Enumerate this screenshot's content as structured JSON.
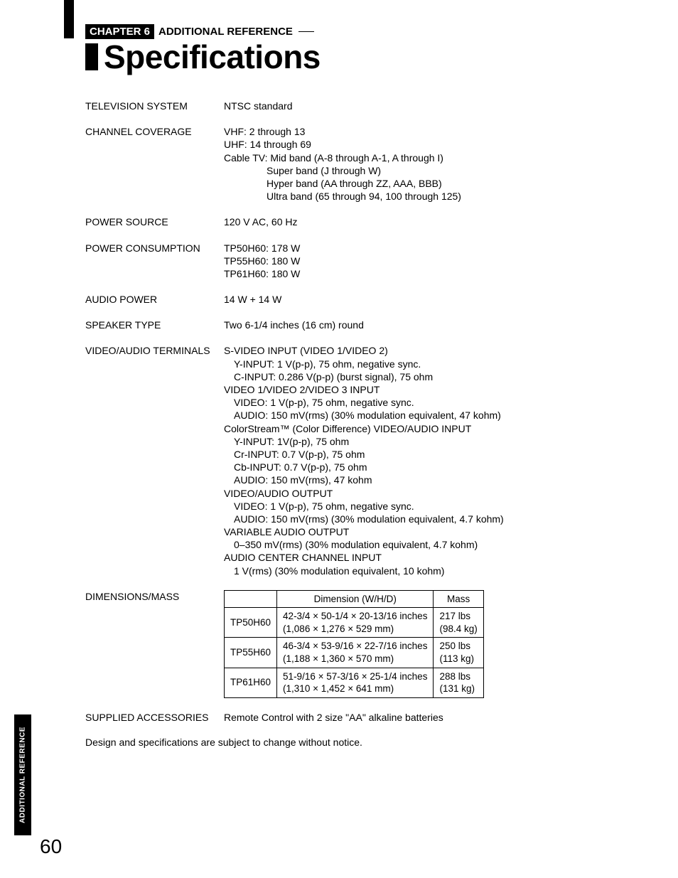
{
  "chapter_label": "CHAPTER 6",
  "chapter_title": "ADDITIONAL REFERENCE",
  "page_title": "Specifications",
  "side_tab": "ADDITIONAL REFERENCE",
  "page_number": "60",
  "specs": {
    "television_system": {
      "label": "TELEVISION SYSTEM",
      "value": "NTSC standard"
    },
    "channel_coverage": {
      "label": "CHANNEL COVERAGE",
      "vhf": "VHF: 2 through 13",
      "uhf": "UHF: 14 through 69",
      "cable_lead": "Cable TV: Mid band (A-8 through A-1, A through I)",
      "super": "Super band (J through W)",
      "hyper": "Hyper band (AA through ZZ, AAA, BBB)",
      "ultra": "Ultra band (65 through 94, 100 through 125)"
    },
    "power_source": {
      "label": "POWER SOURCE",
      "value": "120 V AC, 60 Hz"
    },
    "power_consumption": {
      "label": "POWER CONSUMPTION",
      "l1": "TP50H60: 178 W",
      "l2": "TP55H60: 180 W",
      "l3": "TP61H60: 180 W"
    },
    "audio_power": {
      "label": "AUDIO POWER",
      "value": "14 W + 14 W"
    },
    "speaker_type": {
      "label": "SPEAKER TYPE",
      "value": "Two 6-1/4 inches (16 cm) round"
    },
    "terminals": {
      "label": "VIDEO/AUDIO TERMINALS",
      "svideo_head": "S-VIDEO INPUT (VIDEO 1/VIDEO 2)",
      "svideo_y": "Y-INPUT: 1 V(p-p), 75 ohm, negative sync.",
      "svideo_c": "C-INPUT: 0.286 V(p-p) (burst signal), 75 ohm",
      "v123_head": "VIDEO 1/VIDEO 2/VIDEO 3 INPUT",
      "v123_video": "VIDEO: 1 V(p-p), 75 ohm, negative sync.",
      "v123_audio": "AUDIO: 150 mV(rms) (30% modulation equivalent, 47 kohm)",
      "cs_head": "ColorStream™ (Color Difference) VIDEO/AUDIO INPUT",
      "cs_y": "Y-INPUT: 1V(p-p), 75 ohm",
      "cs_cr": "Cr-INPUT: 0.7 V(p-p), 75 ohm",
      "cs_cb": "Cb-INPUT: 0.7 V(p-p), 75 ohm",
      "cs_audio": "AUDIO: 150 mV(rms), 47 kohm",
      "out_head": "VIDEO/AUDIO OUTPUT",
      "out_video": "VIDEO: 1 V(p-p), 75 ohm, negative sync.",
      "out_audio": "AUDIO: 150 mV(rms) (30% modulation equivalent, 4.7 kohm)",
      "var_head": "VARIABLE AUDIO OUTPUT",
      "var_val": "0–350 mV(rms) (30% modulation equivalent, 4.7 kohm)",
      "center_head": "AUDIO CENTER CHANNEL INPUT",
      "center_val": "1 V(rms) (30% modulation equivalent, 10 kohm)"
    },
    "dimensions": {
      "label": "DIMENSIONS/MASS",
      "col_dim": "Dimension (W/H/D)",
      "col_mass": "Mass",
      "rows": [
        {
          "model": "TP50H60",
          "dim1": "42-3/4 × 50-1/4 × 20-13/16 inches",
          "dim2": "(1,086 × 1,276 × 529 mm)",
          "mass1": "217 lbs",
          "mass2": "(98.4 kg)"
        },
        {
          "model": "TP55H60",
          "dim1": "46-3/4 × 53-9/16 × 22-7/16 inches",
          "dim2": "(1,188 × 1,360 × 570 mm)",
          "mass1": "250 lbs",
          "mass2": "(113 kg)"
        },
        {
          "model": "TP61H60",
          "dim1": "51-9/16 × 57-3/16 × 25-1/4 inches",
          "dim2": "(1,310 × 1,452 × 641 mm)",
          "mass1": "288 lbs",
          "mass2": "(131 kg)"
        }
      ]
    },
    "accessories": {
      "label": "SUPPLIED ACCESSORIES",
      "value": "Remote Control with 2 size \"AA\" alkaline batteries"
    }
  },
  "disclaimer": "Design and specifications are subject to change without notice."
}
